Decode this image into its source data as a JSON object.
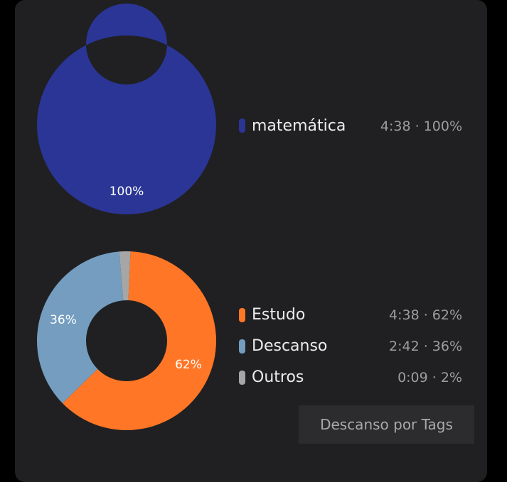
{
  "colors": {
    "card": "#202022",
    "matematica": "#2a3596",
    "estudo": "#ff7626",
    "descanso": "#749dbf",
    "outros": "#a6a6a6"
  },
  "top_chart": {
    "items": [
      {
        "label": "matemática",
        "value": "4:38 · 100%",
        "percent": 100,
        "slice_label": "100%"
      }
    ]
  },
  "bottom_chart": {
    "items": [
      {
        "label": "Estudo",
        "value": "4:38 · 62%",
        "percent": 62,
        "slice_label": "62%"
      },
      {
        "label": "Descanso",
        "value": "2:42 · 36%",
        "percent": 36,
        "slice_label": "36%"
      },
      {
        "label": "Outros",
        "value": "0:09 · 2%",
        "percent": 2,
        "slice_label": ""
      }
    ]
  },
  "button": {
    "label": "Descanso por Tags"
  }
}
